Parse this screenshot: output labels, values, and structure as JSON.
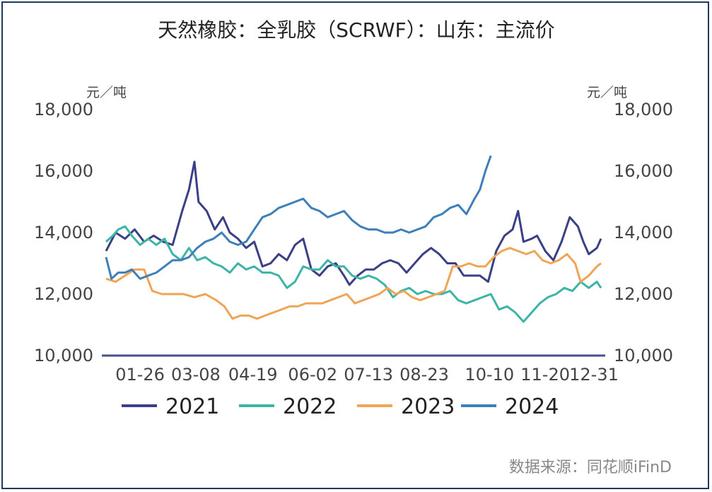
{
  "chart_data": {
    "type": "line",
    "title": "天然橡胶：全乳胶（SCRWF）：山东：主流价",
    "y_unit_left": "元／吨",
    "y_unit_right": "元／吨",
    "ylim": [
      10000,
      18000
    ],
    "y_ticks": [
      "10,000",
      "12,000",
      "14,000",
      "16,000",
      "18,000"
    ],
    "y_tick_values": [
      10000,
      12000,
      14000,
      16000,
      18000
    ],
    "x_ticks": [
      "01-26",
      "03-08",
      "04-19",
      "06-02",
      "07-13",
      "08-23",
      "10-10",
      "11-20",
      "12-31"
    ],
    "x_tick_days": [
      26,
      67,
      109,
      153,
      194,
      235,
      283,
      324,
      365
    ],
    "grid": false,
    "legend_position": "bottom",
    "series": [
      {
        "name": "2021",
        "color": "#3b3f86",
        "points": [
          [
            1,
            13400
          ],
          [
            8,
            14000
          ],
          [
            15,
            13800
          ],
          [
            22,
            14100
          ],
          [
            29,
            13700
          ],
          [
            36,
            13900
          ],
          [
            43,
            13700
          ],
          [
            50,
            13600
          ],
          [
            57,
            14700
          ],
          [
            62,
            15400
          ],
          [
            66,
            16300
          ],
          [
            69,
            15000
          ],
          [
            75,
            14700
          ],
          [
            81,
            14100
          ],
          [
            87,
            14500
          ],
          [
            92,
            14000
          ],
          [
            98,
            13800
          ],
          [
            104,
            13500
          ],
          [
            110,
            13700
          ],
          [
            116,
            12900
          ],
          [
            122,
            13000
          ],
          [
            128,
            13300
          ],
          [
            134,
            13100
          ],
          [
            140,
            13600
          ],
          [
            146,
            13800
          ],
          [
            152,
            12800
          ],
          [
            158,
            12600
          ],
          [
            164,
            12900
          ],
          [
            170,
            13000
          ],
          [
            176,
            12600
          ],
          [
            180,
            12300
          ],
          [
            186,
            12600
          ],
          [
            192,
            12800
          ],
          [
            198,
            12800
          ],
          [
            204,
            13000
          ],
          [
            210,
            13100
          ],
          [
            216,
            13000
          ],
          [
            222,
            12700
          ],
          [
            228,
            13000
          ],
          [
            234,
            13300
          ],
          [
            240,
            13500
          ],
          [
            246,
            13300
          ],
          [
            252,
            13000
          ],
          [
            258,
            13000
          ],
          [
            264,
            12600
          ],
          [
            270,
            12600
          ],
          [
            276,
            12600
          ],
          [
            282,
            12400
          ],
          [
            288,
            13400
          ],
          [
            294,
            13900
          ],
          [
            300,
            14100
          ],
          [
            304,
            14700
          ],
          [
            308,
            13700
          ],
          [
            314,
            13800
          ],
          [
            318,
            13900
          ],
          [
            324,
            13400
          ],
          [
            330,
            13100
          ],
          [
            336,
            13700
          ],
          [
            342,
            14500
          ],
          [
            348,
            14200
          ],
          [
            352,
            13700
          ],
          [
            356,
            13300
          ],
          [
            362,
            13500
          ],
          [
            365,
            13800
          ]
        ]
      },
      {
        "name": "2022",
        "color": "#3cb4a6",
        "points": [
          [
            1,
            13700
          ],
          [
            6,
            13900
          ],
          [
            10,
            14100
          ],
          [
            15,
            14200
          ],
          [
            20,
            13900
          ],
          [
            26,
            13600
          ],
          [
            32,
            13800
          ],
          [
            38,
            13600
          ],
          [
            44,
            13800
          ],
          [
            50,
            13300
          ],
          [
            56,
            13100
          ],
          [
            62,
            13500
          ],
          [
            68,
            13100
          ],
          [
            74,
            13200
          ],
          [
            80,
            13000
          ],
          [
            86,
            12900
          ],
          [
            92,
            12700
          ],
          [
            98,
            13000
          ],
          [
            104,
            12800
          ],
          [
            110,
            12900
          ],
          [
            116,
            12700
          ],
          [
            122,
            12700
          ],
          [
            128,
            12600
          ],
          [
            134,
            12200
          ],
          [
            140,
            12400
          ],
          [
            146,
            12900
          ],
          [
            152,
            12800
          ],
          [
            158,
            12800
          ],
          [
            164,
            13100
          ],
          [
            170,
            12900
          ],
          [
            176,
            12900
          ],
          [
            182,
            12600
          ],
          [
            188,
            12500
          ],
          [
            194,
            12600
          ],
          [
            200,
            12500
          ],
          [
            206,
            12300
          ],
          [
            212,
            11900
          ],
          [
            218,
            12100
          ],
          [
            224,
            12200
          ],
          [
            230,
            12000
          ],
          [
            236,
            12100
          ],
          [
            242,
            12000
          ],
          [
            248,
            12000
          ],
          [
            254,
            12100
          ],
          [
            260,
            11800
          ],
          [
            266,
            11700
          ],
          [
            272,
            11800
          ],
          [
            278,
            11900
          ],
          [
            284,
            12000
          ],
          [
            290,
            11500
          ],
          [
            296,
            11600
          ],
          [
            302,
            11400
          ],
          [
            308,
            11100
          ],
          [
            314,
            11400
          ],
          [
            320,
            11700
          ],
          [
            326,
            11900
          ],
          [
            332,
            12000
          ],
          [
            338,
            12200
          ],
          [
            344,
            12100
          ],
          [
            350,
            12400
          ],
          [
            356,
            12200
          ],
          [
            362,
            12400
          ],
          [
            365,
            12200
          ]
        ]
      },
      {
        "name": "2023",
        "color": "#f0a455",
        "points": [
          [
            1,
            12500
          ],
          [
            8,
            12400
          ],
          [
            15,
            12600
          ],
          [
            22,
            12800
          ],
          [
            29,
            12800
          ],
          [
            35,
            12100
          ],
          [
            42,
            12000
          ],
          [
            50,
            12000
          ],
          [
            58,
            12000
          ],
          [
            66,
            11900
          ],
          [
            74,
            12000
          ],
          [
            82,
            11800
          ],
          [
            88,
            11600
          ],
          [
            94,
            11200
          ],
          [
            100,
            11300
          ],
          [
            106,
            11300
          ],
          [
            112,
            11200
          ],
          [
            118,
            11300
          ],
          [
            124,
            11400
          ],
          [
            130,
            11500
          ],
          [
            136,
            11600
          ],
          [
            142,
            11600
          ],
          [
            148,
            11700
          ],
          [
            154,
            11700
          ],
          [
            160,
            11700
          ],
          [
            166,
            11800
          ],
          [
            172,
            11900
          ],
          [
            178,
            12000
          ],
          [
            184,
            11700
          ],
          [
            190,
            11800
          ],
          [
            196,
            11900
          ],
          [
            202,
            12000
          ],
          [
            208,
            12200
          ],
          [
            214,
            12000
          ],
          [
            220,
            12100
          ],
          [
            226,
            11900
          ],
          [
            232,
            11800
          ],
          [
            238,
            11900
          ],
          [
            244,
            12000
          ],
          [
            250,
            12100
          ],
          [
            256,
            12900
          ],
          [
            262,
            12900
          ],
          [
            268,
            13000
          ],
          [
            274,
            12900
          ],
          [
            280,
            12900
          ],
          [
            286,
            13200
          ],
          [
            292,
            13400
          ],
          [
            298,
            13500
          ],
          [
            304,
            13400
          ],
          [
            310,
            13300
          ],
          [
            316,
            13400
          ],
          [
            322,
            13100
          ],
          [
            328,
            13000
          ],
          [
            334,
            13100
          ],
          [
            340,
            13300
          ],
          [
            346,
            13000
          ],
          [
            350,
            12400
          ],
          [
            356,
            12600
          ],
          [
            362,
            12900
          ],
          [
            365,
            13000
          ]
        ]
      },
      {
        "name": "2024",
        "color": "#3d7fb8",
        "points": [
          [
            1,
            13200
          ],
          [
            5,
            12500
          ],
          [
            10,
            12700
          ],
          [
            15,
            12700
          ],
          [
            20,
            12800
          ],
          [
            26,
            12500
          ],
          [
            32,
            12600
          ],
          [
            38,
            12700
          ],
          [
            44,
            12900
          ],
          [
            50,
            13100
          ],
          [
            56,
            13100
          ],
          [
            62,
            13200
          ],
          [
            68,
            13500
          ],
          [
            74,
            13700
          ],
          [
            80,
            13800
          ],
          [
            86,
            14000
          ],
          [
            92,
            13700
          ],
          [
            98,
            13600
          ],
          [
            104,
            13700
          ],
          [
            110,
            14100
          ],
          [
            116,
            14500
          ],
          [
            122,
            14600
          ],
          [
            128,
            14800
          ],
          [
            134,
            14900
          ],
          [
            140,
            15000
          ],
          [
            146,
            15100
          ],
          [
            152,
            14800
          ],
          [
            158,
            14700
          ],
          [
            164,
            14500
          ],
          [
            170,
            14600
          ],
          [
            176,
            14700
          ],
          [
            182,
            14400
          ],
          [
            188,
            14200
          ],
          [
            194,
            14100
          ],
          [
            200,
            14100
          ],
          [
            206,
            14000
          ],
          [
            212,
            14000
          ],
          [
            218,
            14100
          ],
          [
            224,
            14000
          ],
          [
            230,
            14100
          ],
          [
            236,
            14200
          ],
          [
            242,
            14500
          ],
          [
            248,
            14600
          ],
          [
            254,
            14800
          ],
          [
            260,
            14900
          ],
          [
            266,
            14600
          ],
          [
            272,
            15100
          ],
          [
            276,
            15400
          ],
          [
            280,
            16000
          ],
          [
            284,
            16500
          ]
        ]
      }
    ],
    "legend": [
      "2021",
      "2022",
      "2023",
      "2024"
    ],
    "source": "数据来源：同花顺iFinD"
  }
}
